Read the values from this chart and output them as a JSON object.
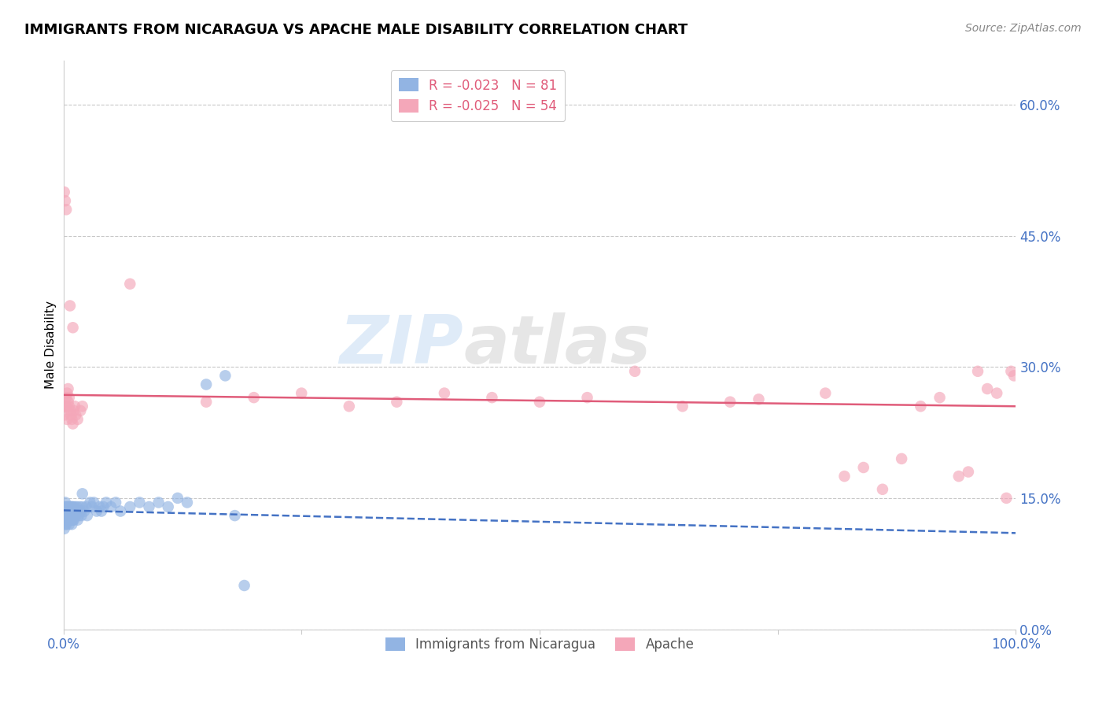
{
  "title": "IMMIGRANTS FROM NICARAGUA VS APACHE MALE DISABILITY CORRELATION CHART",
  "source": "Source: ZipAtlas.com",
  "ylabel": "Male Disability",
  "xlim": [
    0.0,
    1.0
  ],
  "ylim": [
    0.0,
    0.65
  ],
  "yticks": [
    0.0,
    0.15,
    0.3,
    0.45,
    0.6
  ],
  "xticks": [
    0.0,
    0.25,
    0.5,
    0.75,
    1.0
  ],
  "xtick_labels": [
    "0.0%",
    "",
    "",
    "",
    "100.0%"
  ],
  "blue_R": -0.023,
  "blue_N": 81,
  "pink_R": -0.025,
  "pink_N": 54,
  "blue_color": "#92b4e3",
  "pink_color": "#f4a7b9",
  "blue_line_color": "#4472c4",
  "pink_line_color": "#e05c7a",
  "tick_color": "#4472c4",
  "grid_color": "#c8c8c8",
  "background_color": "#ffffff",
  "watermark_zip": "ZIP",
  "watermark_atlas": "atlas",
  "blue_line_x": [
    0.0,
    1.0
  ],
  "blue_line_y": [
    0.136,
    0.11
  ],
  "pink_line_x": [
    0.0,
    1.0
  ],
  "pink_line_y": [
    0.268,
    0.255
  ],
  "blue_scatter_x": [
    0.0005,
    0.001,
    0.001,
    0.0015,
    0.002,
    0.002,
    0.002,
    0.0025,
    0.003,
    0.003,
    0.003,
    0.003,
    0.004,
    0.004,
    0.004,
    0.004,
    0.005,
    0.005,
    0.005,
    0.005,
    0.006,
    0.006,
    0.006,
    0.006,
    0.006,
    0.007,
    0.007,
    0.007,
    0.007,
    0.008,
    0.008,
    0.008,
    0.008,
    0.009,
    0.009,
    0.009,
    0.009,
    0.01,
    0.01,
    0.01,
    0.01,
    0.011,
    0.011,
    0.012,
    0.012,
    0.013,
    0.013,
    0.014,
    0.015,
    0.015,
    0.016,
    0.017,
    0.018,
    0.019,
    0.02,
    0.022,
    0.024,
    0.025,
    0.028,
    0.03,
    0.032,
    0.035,
    0.038,
    0.04,
    0.042,
    0.045,
    0.05,
    0.055,
    0.06,
    0.07,
    0.08,
    0.09,
    0.1,
    0.11,
    0.12,
    0.13,
    0.15,
    0.17,
    0.18,
    0.19,
    0.02
  ],
  "blue_scatter_y": [
    0.13,
    0.115,
    0.14,
    0.125,
    0.13,
    0.12,
    0.145,
    0.135,
    0.125,
    0.13,
    0.12,
    0.14,
    0.13,
    0.125,
    0.14,
    0.135,
    0.13,
    0.125,
    0.14,
    0.135,
    0.13,
    0.125,
    0.14,
    0.12,
    0.135,
    0.13,
    0.125,
    0.14,
    0.135,
    0.13,
    0.125,
    0.14,
    0.135,
    0.13,
    0.125,
    0.14,
    0.12,
    0.13,
    0.125,
    0.14,
    0.135,
    0.13,
    0.125,
    0.13,
    0.14,
    0.135,
    0.13,
    0.14,
    0.135,
    0.125,
    0.13,
    0.14,
    0.135,
    0.13,
    0.14,
    0.135,
    0.14,
    0.13,
    0.145,
    0.14,
    0.145,
    0.135,
    0.14,
    0.135,
    0.14,
    0.145,
    0.14,
    0.145,
    0.135,
    0.14,
    0.145,
    0.14,
    0.145,
    0.14,
    0.15,
    0.145,
    0.28,
    0.29,
    0.13,
    0.05,
    0.155
  ],
  "pink_scatter_x": [
    0.001,
    0.002,
    0.003,
    0.003,
    0.004,
    0.004,
    0.005,
    0.005,
    0.006,
    0.006,
    0.007,
    0.008,
    0.009,
    0.01,
    0.011,
    0.012,
    0.013,
    0.015,
    0.018,
    0.02,
    0.07,
    0.15,
    0.2,
    0.25,
    0.3,
    0.35,
    0.4,
    0.45,
    0.5,
    0.55,
    0.6,
    0.65,
    0.7,
    0.73,
    0.8,
    0.82,
    0.84,
    0.86,
    0.88,
    0.9,
    0.92,
    0.94,
    0.95,
    0.96,
    0.97,
    0.98,
    0.99,
    0.995,
    0.998,
    0.001,
    0.002,
    0.003,
    0.007,
    0.01
  ],
  "pink_scatter_y": [
    0.245,
    0.255,
    0.265,
    0.255,
    0.24,
    0.27,
    0.26,
    0.275,
    0.255,
    0.265,
    0.25,
    0.245,
    0.24,
    0.235,
    0.25,
    0.255,
    0.245,
    0.24,
    0.25,
    0.255,
    0.395,
    0.26,
    0.265,
    0.27,
    0.255,
    0.26,
    0.27,
    0.265,
    0.26,
    0.265,
    0.295,
    0.255,
    0.26,
    0.263,
    0.27,
    0.175,
    0.185,
    0.16,
    0.195,
    0.255,
    0.265,
    0.175,
    0.18,
    0.295,
    0.275,
    0.27,
    0.15,
    0.295,
    0.29,
    0.5,
    0.49,
    0.48,
    0.37,
    0.345
  ]
}
